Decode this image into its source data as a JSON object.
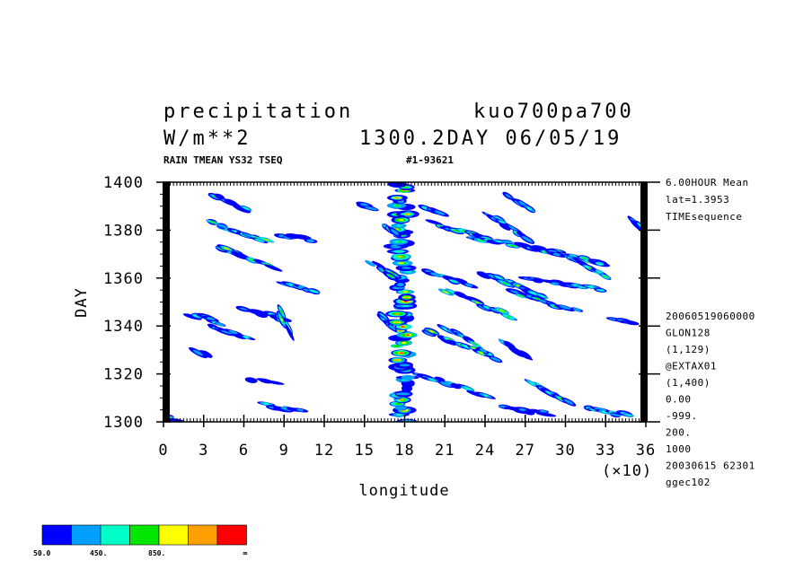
{
  "header": {
    "variable": "precipitation",
    "run": "kuo700pa700",
    "unit": "W/m**2",
    "time": "1300.2DAY 06/05/19",
    "subtitle_left": "RAIN TMEAN YS32 TSEQ",
    "subtitle_right": "#1-93621"
  },
  "side_info_top": [
    "6.00HOUR Mean",
    "lat=1.3953",
    "TIMEsequence"
  ],
  "side_info_bottom": [
    "20060519060000",
    "GLON128",
    "(1,129)",
    "@EXTAX01",
    "(1,400)",
    "0.00",
    "-999.",
    "200.",
    "1000",
    "20030615  62301",
    "ggec102"
  ],
  "chart_data": {
    "type": "heatmap",
    "xlabel": "longitude",
    "ylabel": "DAY",
    "x_multiplier_label": "(×10)",
    "xlim": [
      0,
      36
    ],
    "ylim": [
      1300,
      1400
    ],
    "x_ticks": [
      "0",
      "3",
      "6",
      "9",
      "12",
      "15",
      "18",
      "21",
      "24",
      "27",
      "30",
      "33",
      "36"
    ],
    "y_ticks": [
      "1300",
      "1320",
      "1340",
      "1360",
      "1380",
      "1400"
    ],
    "colorbar": {
      "colors": [
        "#0000ff",
        "#00a0ff",
        "#00ffc8",
        "#00e600",
        "#ffff00",
        "#ffa000",
        "#ff0000"
      ],
      "labels": [
        "50.0",
        "450.",
        "850.",
        "∞"
      ]
    },
    "features": [
      {
        "kind": "vertical-band",
        "x": 17.8,
        "y0": 1300,
        "y1": 1400,
        "intensity": 7
      },
      {
        "kind": "streak",
        "x0": 3.5,
        "y0": 1395,
        "x1": 6.5,
        "y1": 1388,
        "intensity": 3
      },
      {
        "kind": "streak",
        "x0": 3.5,
        "y0": 1383,
        "x1": 8,
        "y1": 1375,
        "intensity": 4
      },
      {
        "kind": "streak",
        "x0": 4,
        "y0": 1373,
        "x1": 8.5,
        "y1": 1364,
        "intensity": 4
      },
      {
        "kind": "streak",
        "x0": 8.5,
        "y0": 1378,
        "x1": 11,
        "y1": 1376,
        "intensity": 2
      },
      {
        "kind": "streak",
        "x0": 9,
        "y0": 1358,
        "x1": 11.5,
        "y1": 1354,
        "intensity": 2
      },
      {
        "kind": "streak",
        "x0": 2,
        "y0": 1345,
        "x1": 4.5,
        "y1": 1341,
        "intensity": 2
      },
      {
        "kind": "streak",
        "x0": 6,
        "y0": 1347,
        "x1": 9.5,
        "y1": 1342,
        "intensity": 3
      },
      {
        "kind": "streak",
        "x0": 8.5,
        "y0": 1347,
        "x1": 9.5,
        "y1": 1336,
        "intensity": 4
      },
      {
        "kind": "streak",
        "x0": 3.5,
        "y0": 1340,
        "x1": 6.5,
        "y1": 1335,
        "intensity": 2
      },
      {
        "kind": "streak",
        "x0": 2.5,
        "y0": 1330,
        "x1": 3.5,
        "y1": 1327,
        "intensity": 1
      },
      {
        "kind": "streak",
        "x0": 6.5,
        "y0": 1318,
        "x1": 8.5,
        "y1": 1316,
        "intensity": 1
      },
      {
        "kind": "streak",
        "x0": 7.5,
        "y0": 1307,
        "x1": 10.5,
        "y1": 1304,
        "intensity": 2
      },
      {
        "kind": "streak",
        "x0": 14.5,
        "y0": 1391,
        "x1": 16,
        "y1": 1389,
        "intensity": 1
      },
      {
        "kind": "streak",
        "x0": 19.5,
        "y0": 1390,
        "x1": 21,
        "y1": 1387,
        "intensity": 2
      },
      {
        "kind": "streak",
        "x0": 20,
        "y0": 1383,
        "x1": 24.5,
        "y1": 1376,
        "intensity": 3
      },
      {
        "kind": "streak",
        "x0": 23,
        "y0": 1377,
        "x1": 30,
        "y1": 1370,
        "intensity": 3
      },
      {
        "kind": "streak",
        "x0": 24,
        "y0": 1387,
        "x1": 27.5,
        "y1": 1376,
        "intensity": 3
      },
      {
        "kind": "streak",
        "x0": 25.5,
        "y0": 1395,
        "x1": 27.5,
        "y1": 1388,
        "intensity": 2
      },
      {
        "kind": "streak",
        "x0": 27,
        "y0": 1373,
        "x1": 33,
        "y1": 1366,
        "intensity": 3
      },
      {
        "kind": "streak",
        "x0": 30.5,
        "y0": 1368,
        "x1": 33.5,
        "y1": 1360,
        "intensity": 3
      },
      {
        "kind": "streak",
        "x0": 19.5,
        "y0": 1363,
        "x1": 23,
        "y1": 1357,
        "intensity": 2
      },
      {
        "kind": "streak",
        "x0": 21,
        "y0": 1355,
        "x1": 26,
        "y1": 1344,
        "intensity": 4
      },
      {
        "kind": "streak",
        "x0": 24,
        "y0": 1362,
        "x1": 28.5,
        "y1": 1352,
        "intensity": 4
      },
      {
        "kind": "streak",
        "x0": 26,
        "y0": 1354,
        "x1": 31,
        "y1": 1346,
        "intensity": 3
      },
      {
        "kind": "streak",
        "x0": 27,
        "y0": 1360,
        "x1": 33,
        "y1": 1355,
        "intensity": 2
      },
      {
        "kind": "streak",
        "x0": 19.5,
        "y0": 1338,
        "x1": 25,
        "y1": 1326,
        "intensity": 4
      },
      {
        "kind": "streak",
        "x0": 21,
        "y0": 1339,
        "x1": 24,
        "y1": 1330,
        "intensity": 3
      },
      {
        "kind": "streak",
        "x0": 19,
        "y0": 1320,
        "x1": 24,
        "y1": 1311,
        "intensity": 2
      },
      {
        "kind": "streak",
        "x0": 25.5,
        "y0": 1333,
        "x1": 27.5,
        "y1": 1326,
        "intensity": 2
      },
      {
        "kind": "streak",
        "x0": 27.5,
        "y0": 1316,
        "x1": 30.5,
        "y1": 1307,
        "intensity": 3
      },
      {
        "kind": "streak",
        "x0": 25.5,
        "y0": 1306,
        "x1": 29,
        "y1": 1303,
        "intensity": 1
      },
      {
        "kind": "streak",
        "x0": 31.5,
        "y0": 1306,
        "x1": 35,
        "y1": 1302,
        "intensity": 2
      },
      {
        "kind": "streak",
        "x0": 33.5,
        "y0": 1343,
        "x1": 35.5,
        "y1": 1341,
        "intensity": 2
      },
      {
        "kind": "streak",
        "x0": 35,
        "y0": 1385,
        "x1": 36,
        "y1": 1380,
        "intensity": 3
      },
      {
        "kind": "streak",
        "x0": 0,
        "y0": 1302,
        "x1": 1.5,
        "y1": 1300.5,
        "intensity": 2
      },
      {
        "kind": "streak",
        "x0": 15.5,
        "y0": 1366,
        "x1": 17.5,
        "y1": 1360,
        "intensity": 3
      },
      {
        "kind": "streak",
        "x0": 16,
        "y0": 1345,
        "x1": 17.5,
        "y1": 1338,
        "intensity": 3
      },
      {
        "kind": "streak",
        "x0": 16.5,
        "y0": 1382,
        "x1": 17.5,
        "y1": 1378,
        "intensity": 3
      }
    ]
  }
}
